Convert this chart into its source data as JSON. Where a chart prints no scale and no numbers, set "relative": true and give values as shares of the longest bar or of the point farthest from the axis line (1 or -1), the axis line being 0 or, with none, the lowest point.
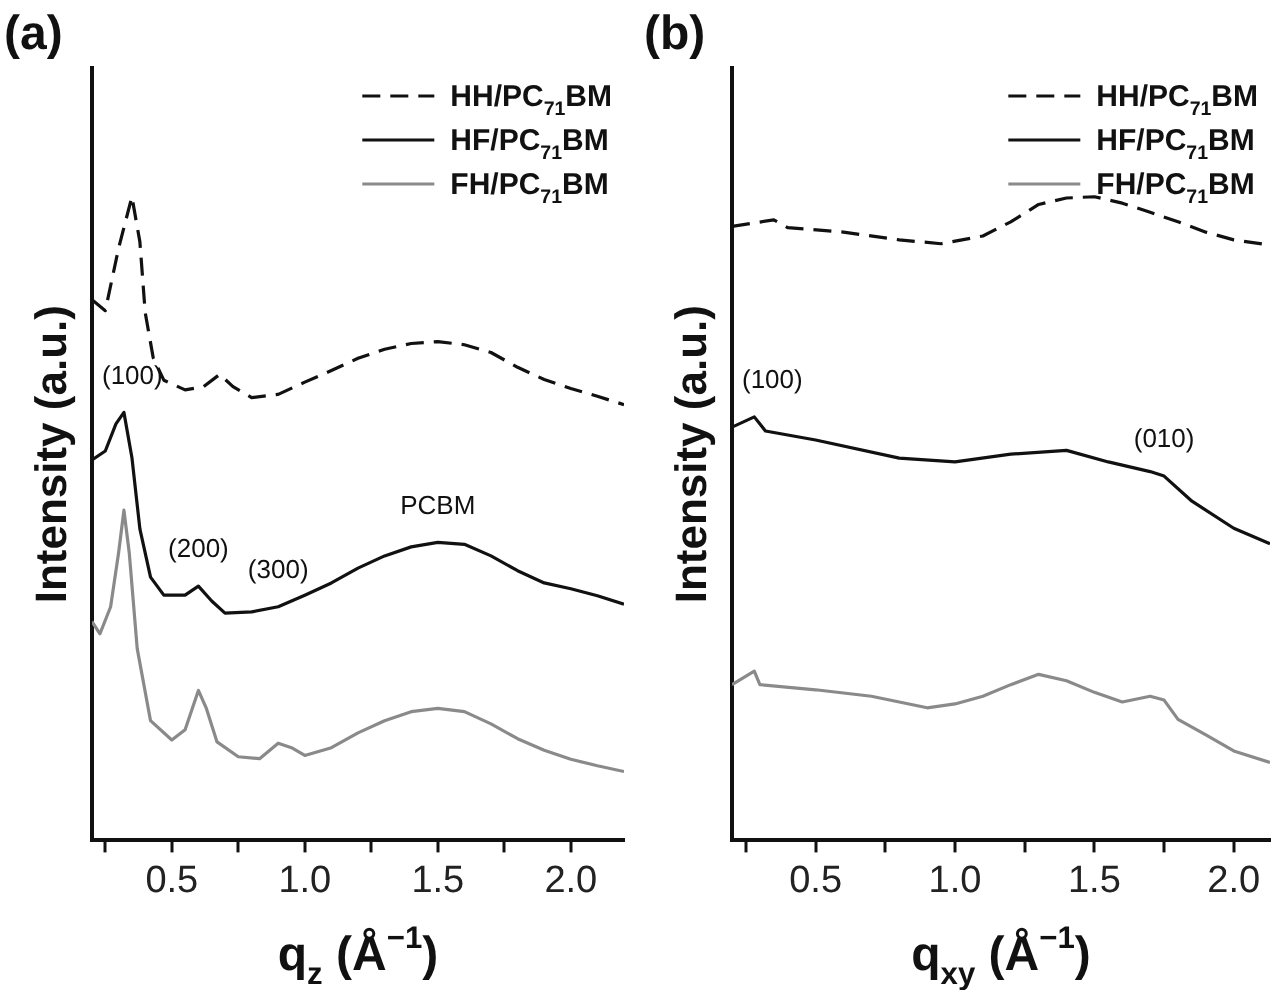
{
  "chart_data": [
    {
      "type": "line",
      "title": "(a)",
      "xlabel": "q$_{z}$ (Å$^{−1}$)",
      "ylabel": "Intensity (a.u.)",
      "relative": true,
      "legend": "top right",
      "marker": "none",
      "xlim": [
        0.2,
        2.2
      ],
      "xticks": [
        {
          "value": 0.25,
          "label": null
        },
        {
          "value": 0.5,
          "label": "0.5"
        },
        {
          "value": 0.75,
          "label": null
        },
        {
          "value": 1,
          "label": "1.0"
        },
        {
          "value": 1.25,
          "label": null
        },
        {
          "value": 1.5,
          "label": "1.5"
        },
        {
          "value": 1.75,
          "label": null
        },
        {
          "value": 2,
          "label": "2.0"
        }
      ],
      "series": [
        {
          "name": "HH/PC$_{71}$BM",
          "color": "#111111",
          "line_style": "dashed",
          "x": [
            0.2,
            0.25,
            0.3,
            0.35,
            0.38,
            0.4,
            0.43,
            0.47,
            0.55,
            0.62,
            0.68,
            0.73,
            0.8,
            0.9,
            1.0,
            1.1,
            1.2,
            1.3,
            1.4,
            1.5,
            1.6,
            1.7,
            1.8,
            1.9,
            2.0,
            2.1,
            2.2
          ],
          "values": [
            0.84,
            0.823,
            0.92,
            1.0,
            0.93,
            0.82,
            0.75,
            0.715,
            0.7,
            0.705,
            0.724,
            0.705,
            0.688,
            0.693,
            0.712,
            0.73,
            0.749,
            0.763,
            0.772,
            0.775,
            0.77,
            0.758,
            0.735,
            0.716,
            0.702,
            0.69,
            0.677
          ]
        },
        {
          "name": "HF/PC$_{71}$BM",
          "color": "#111111",
          "line_style": "solid",
          "x": [
            0.2,
            0.25,
            0.29,
            0.32,
            0.35,
            0.38,
            0.42,
            0.47,
            0.55,
            0.6,
            0.65,
            0.7,
            0.8,
            0.9,
            1.0,
            1.1,
            1.2,
            1.3,
            1.4,
            1.5,
            1.6,
            1.7,
            1.8,
            1.9,
            2.0,
            2.1,
            2.2
          ],
          "values": [
            0.591,
            0.605,
            0.647,
            0.665,
            0.595,
            0.484,
            0.409,
            0.381,
            0.381,
            0.395,
            0.372,
            0.353,
            0.355,
            0.363,
            0.381,
            0.4,
            0.423,
            0.442,
            0.456,
            0.463,
            0.46,
            0.442,
            0.419,
            0.4,
            0.391,
            0.38,
            0.367
          ]
        },
        {
          "name": "FH/PC$_{71}$BM",
          "color": "#8a8a8a",
          "line_style": "solid",
          "x": [
            0.2,
            0.23,
            0.27,
            0.3,
            0.32,
            0.34,
            0.37,
            0.42,
            0.5,
            0.55,
            0.6,
            0.63,
            0.67,
            0.75,
            0.83,
            0.9,
            0.95,
            1.0,
            1.1,
            1.2,
            1.3,
            1.4,
            1.5,
            1.6,
            1.7,
            1.8,
            1.9,
            2.0,
            2.1,
            2.2
          ],
          "values": [
            0.34,
            0.321,
            0.363,
            0.447,
            0.513,
            0.447,
            0.298,
            0.186,
            0.156,
            0.172,
            0.233,
            0.205,
            0.153,
            0.13,
            0.127,
            0.151,
            0.144,
            0.132,
            0.144,
            0.167,
            0.186,
            0.2,
            0.205,
            0.2,
            0.181,
            0.158,
            0.14,
            0.126,
            0.116,
            0.107
          ]
        }
      ],
      "annotations": [
        {
          "text": "(100)",
          "x": 0.32,
          "y": 0.665
        },
        {
          "text": "(200)",
          "x": 0.6,
          "y": 0.395
        },
        {
          "text": "(300)",
          "x": 0.9,
          "y": 0.363
        },
        {
          "text": "PCBM",
          "x": 1.5,
          "y": 0.463
        }
      ]
    },
    {
      "type": "line",
      "title": "(b)",
      "xlabel": "q$_{xy}$ (Å$^{−1}$)",
      "ylabel": "Intensity (a.u.)",
      "relative": true,
      "legend": "top right",
      "marker": "none",
      "xlim": [
        0.2,
        2.13
      ],
      "xticks": [
        {
          "value": 0.25,
          "label": null
        },
        {
          "value": 0.5,
          "label": "0.5"
        },
        {
          "value": 0.75,
          "label": null
        },
        {
          "value": 1,
          "label": "1.0"
        },
        {
          "value": 1.25,
          "label": null
        },
        {
          "value": 1.5,
          "label": "1.5"
        },
        {
          "value": 1.75,
          "label": null
        },
        {
          "value": 2,
          "label": "2.0"
        }
      ],
      "series": [
        {
          "name": "HH/PC$_{71}$BM",
          "color": "#111111",
          "line_style": "dashed",
          "x": [
            0.2,
            0.35,
            0.4,
            0.6,
            0.8,
            0.95,
            1.1,
            1.2,
            1.3,
            1.4,
            1.5,
            1.6,
            1.7,
            1.8,
            1.9,
            2.0,
            2.13
          ],
          "values": [
            0.954,
            0.964,
            0.952,
            0.945,
            0.933,
            0.927,
            0.939,
            0.961,
            0.988,
            0.998,
            1.0,
            0.99,
            0.976,
            0.961,
            0.945,
            0.933,
            0.925
          ]
        },
        {
          "name": "HF/PC$_{71}$BM",
          "color": "#111111",
          "line_style": "solid",
          "x": [
            0.2,
            0.28,
            0.32,
            0.5,
            0.8,
            1.0,
            1.2,
            1.4,
            1.55,
            1.7,
            1.75,
            1.85,
            2.0,
            2.13
          ],
          "values": [
            0.642,
            0.658,
            0.636,
            0.622,
            0.594,
            0.588,
            0.6,
            0.606,
            0.588,
            0.573,
            0.566,
            0.527,
            0.485,
            0.461
          ]
        },
        {
          "name": "FH/PC$_{71}$BM",
          "color": "#8a8a8a",
          "line_style": "solid",
          "x": [
            0.2,
            0.28,
            0.3,
            0.5,
            0.7,
            0.9,
            1.0,
            1.1,
            1.2,
            1.3,
            1.4,
            1.5,
            1.6,
            1.7,
            1.75,
            1.8,
            1.9,
            2.0,
            2.13
          ],
          "values": [
            0.242,
            0.263,
            0.242,
            0.234,
            0.224,
            0.206,
            0.212,
            0.224,
            0.242,
            0.258,
            0.248,
            0.23,
            0.215,
            0.224,
            0.218,
            0.188,
            0.164,
            0.139,
            0.121
          ]
        }
      ],
      "annotations": [
        {
          "text": "(100)",
          "x": 0.28,
          "y": 0.658
        },
        {
          "text": "(010)",
          "x": 1.75,
          "y": 0.566
        }
      ]
    }
  ]
}
